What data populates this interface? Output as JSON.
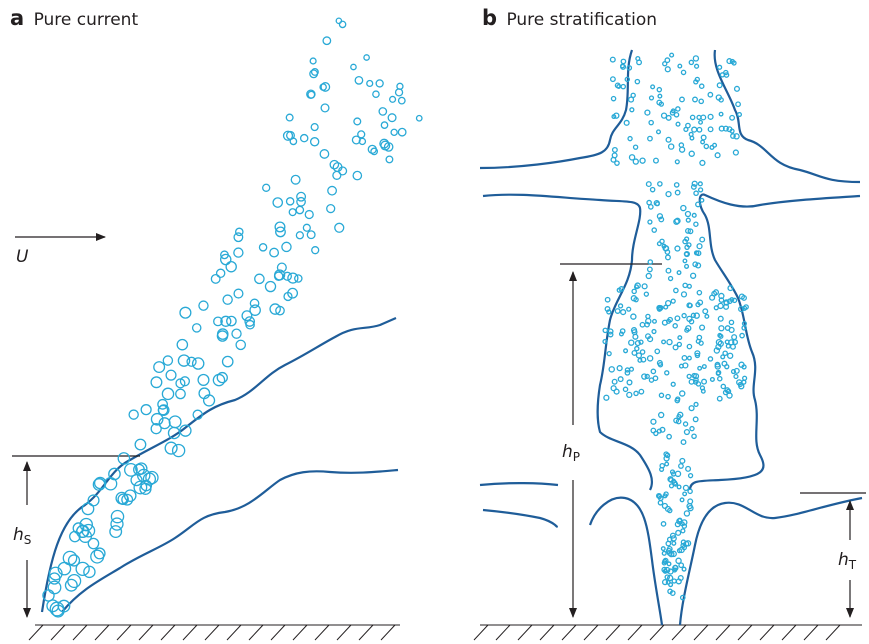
{
  "panels": [
    {
      "letter": "a",
      "title": "Pure current",
      "velocity_label": "U",
      "height_label": {
        "symbol": "h",
        "subscript": "S"
      }
    },
    {
      "letter": "b",
      "title": "Pure stratification",
      "height_labels": [
        {
          "symbol": "h",
          "subscript": "P"
        },
        {
          "symbol": "h",
          "subscript": "T"
        }
      ]
    }
  ]
}
